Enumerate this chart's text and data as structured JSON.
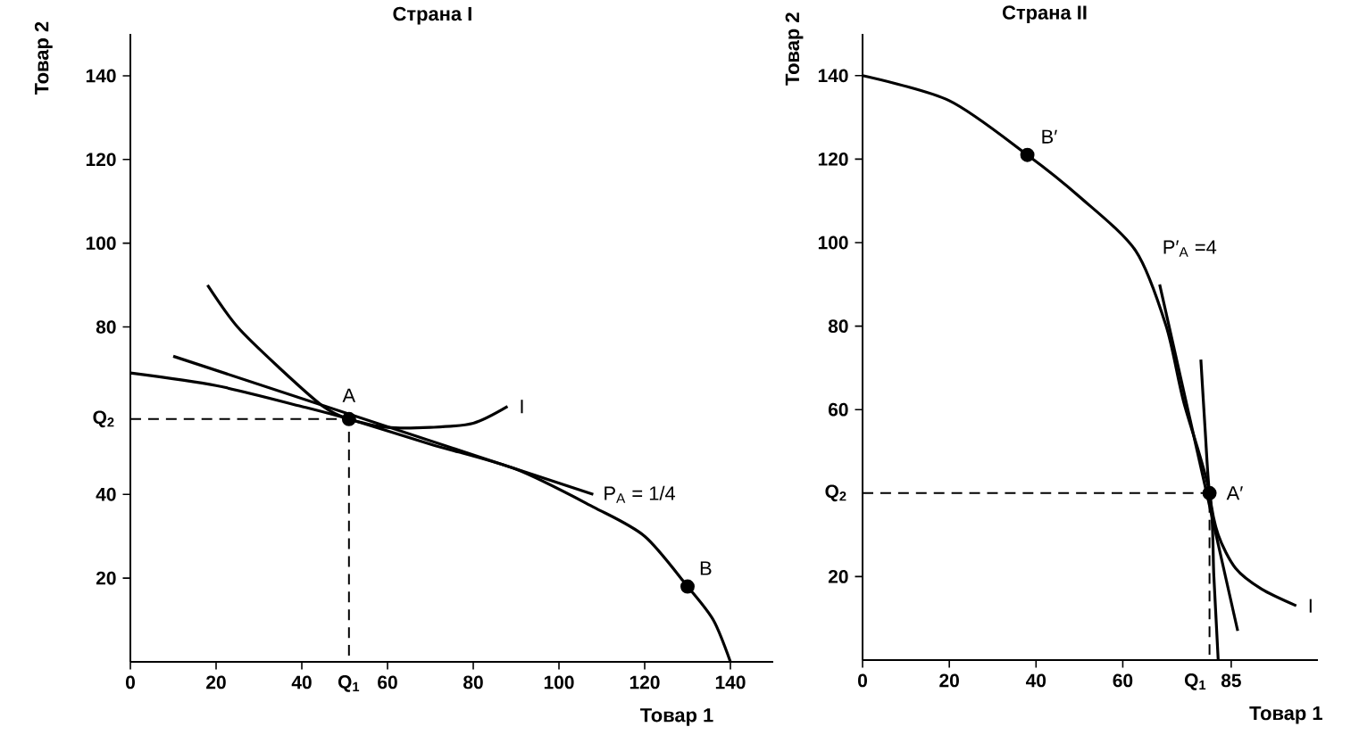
{
  "chart_data": [
    {
      "type": "line",
      "title": "Страна I",
      "xlabel": "Товар 1",
      "ylabel": "Товар 2",
      "xlim": [
        0,
        150
      ],
      "ylim": [
        0,
        150
      ],
      "xticks": [
        0,
        20,
        40,
        60,
        80,
        100,
        120,
        140
      ],
      "yticks": [
        20,
        40,
        80,
        100,
        120,
        140
      ],
      "series": [
        {
          "color": "#000000",
          "line_style": "solid",
          "marker": "none",
          "x": [
            0,
            20,
            40,
            51,
            70,
            90,
            108,
            120,
            130,
            136,
            140
          ],
          "values": [
            69,
            66,
            61,
            58,
            52,
            46,
            37,
            30,
            18,
            10,
            0
          ]
        },
        {
          "color": "#000000",
          "line_style": "solid",
          "marker": "none",
          "x": [
            18,
            25,
            35,
            45,
            51,
            60,
            70,
            80,
            88
          ],
          "values": [
            90,
            80,
            70,
            61,
            58,
            56,
            56,
            57,
            61
          ]
        },
        {
          "color": "#000000",
          "line_style": "solid",
          "marker": "none",
          "x": [
            10,
            108
          ],
          "values": [
            73,
            40
          ]
        },
        {
          "color": "#000000",
          "line_style": "dashed",
          "marker": "none",
          "x": [
            0,
            51,
            51
          ],
          "values": [
            58,
            58,
            0
          ]
        },
        {
          "type": "scatter",
          "color": "#000000",
          "marker": "circle",
          "x": [
            51,
            130
          ],
          "values": [
            58,
            18
          ]
        }
      ],
      "annotations": [
        {
          "text": "A",
          "x": 51,
          "y": 58
        },
        {
          "text": "B",
          "x": 130,
          "y": 18
        },
        {
          "text": "I",
          "x": 88,
          "y": 61
        },
        {
          "text": "P$_{A}$ = 1/4",
          "x": 108,
          "y": 40
        },
        {
          "text": "Q$_{1}$",
          "x": 51,
          "y": 0
        },
        {
          "text": "Q$_{2}$",
          "x": 0,
          "y": 58
        }
      ]
    },
    {
      "type": "line",
      "title": "Страна II",
      "xlabel": "Товар 1",
      "ylabel": "Товар 2",
      "xlim": [
        0,
        105
      ],
      "ylim": [
        0,
        150
      ],
      "xticks": [
        0,
        20,
        40,
        60,
        85
      ],
      "yticks": [
        20,
        60,
        80,
        100,
        120,
        140
      ],
      "series": [
        {
          "color": "#000000",
          "line_style": "solid",
          "marker": "none",
          "x": [
            0,
            20,
            38,
            50,
            63,
            70,
            74,
            80,
            81,
            82
          ],
          "values": [
            140,
            134,
            121,
            111,
            98,
            80,
            62,
            40,
            20,
            0
          ]
        },
        {
          "color": "#000000",
          "line_style": "solid",
          "marker": "none",
          "x": [
            78,
            79,
            80,
            82,
            86,
            92,
            100
          ],
          "values": [
            72,
            55,
            40,
            30,
            22,
            17,
            13
          ]
        },
        {
          "color": "#000000",
          "line_style": "solid",
          "marker": "none",
          "x": [
            68.5,
            86.5
          ],
          "values": [
            90,
            7
          ]
        },
        {
          "color": "#000000",
          "line_style": "dashed",
          "marker": "none",
          "x": [
            0,
            80,
            80
          ],
          "values": [
            40,
            40,
            0
          ]
        },
        {
          "type": "scatter",
          "color": "#000000",
          "marker": "circle",
          "x": [
            38,
            80
          ],
          "values": [
            121,
            40
          ]
        }
      ],
      "annotations": [
        {
          "text": "B′",
          "x": 38,
          "y": 121
        },
        {
          "text": "A′",
          "x": 80,
          "y": 40
        },
        {
          "text": "I",
          "x": 100,
          "y": 13
        },
        {
          "text": "P′$_{A}$ =4",
          "x": 68.5,
          "y": 90
        },
        {
          "text": "Q$_{1}$",
          "x": 80,
          "y": 0
        },
        {
          "text": "Q$_{2}$",
          "x": 0,
          "y": 40
        }
      ]
    }
  ]
}
